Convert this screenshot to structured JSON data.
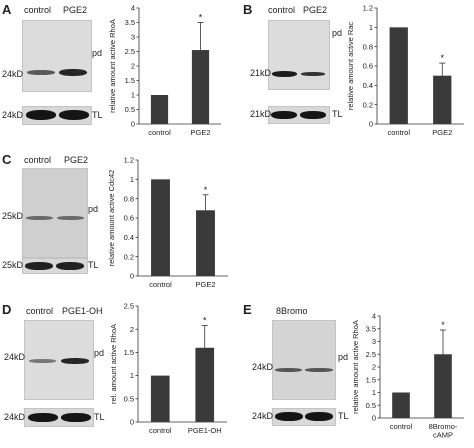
{
  "panels": [
    {
      "letter": "A",
      "lanes": [
        "control",
        "PGE2"
      ],
      "pd_label": "pd",
      "tl_label": "TL",
      "marker_pd": "24kD",
      "marker_tl": "24kD"
    },
    {
      "letter": "B",
      "lanes": [
        "control",
        "PGE2"
      ],
      "pd_label": "pd",
      "tl_label": "TL",
      "marker_pd": "21kD",
      "marker_tl": "21kD"
    },
    {
      "letter": "C",
      "lanes": [
        "control",
        "PGE2"
      ],
      "pd_label": "pd",
      "tl_label": "TL",
      "marker_pd": "25kD",
      "marker_tl": "25kD"
    },
    {
      "letter": "D",
      "lanes": [
        "control",
        "PGE1-OH"
      ],
      "pd_label": "pd",
      "tl_label": "TL",
      "marker_pd": "24kD",
      "marker_tl": "24kD"
    },
    {
      "letter": "E",
      "lanes": [
        "8Bromo"
      ],
      "pd_label": "pd",
      "tl_label": "TL",
      "marker_pd": "24kD",
      "marker_tl": "24kD"
    }
  ],
  "chart_data": [
    {
      "type": "bar",
      "categories": [
        "control",
        "PGE2"
      ],
      "values": [
        1,
        2.55
      ],
      "errors": [
        0,
        0.95
      ],
      "significance": [
        "",
        "*"
      ],
      "ylabel": "relative amount active RhoA",
      "ylim": [
        0,
        4
      ],
      "yticks": [
        "0",
        "0.5",
        "1",
        "1.5",
        "2",
        "2.5",
        "3",
        "3.5",
        "4"
      ],
      "bar_color": "#3a3a3a"
    },
    {
      "type": "bar",
      "categories": [
        "control",
        "PGE2"
      ],
      "values": [
        1,
        0.5
      ],
      "errors": [
        0,
        0.13
      ],
      "significance": [
        "",
        "*"
      ],
      "ylabel": "relative amount active Rac",
      "ylim": [
        0,
        1.2
      ],
      "yticks": [
        "0",
        "0.2",
        "0.4",
        "0.6",
        "0.8",
        "1",
        "1.2"
      ],
      "bar_color": "#3a3a3a"
    },
    {
      "type": "bar",
      "categories": [
        "control",
        "PGE2"
      ],
      "values": [
        1,
        0.68
      ],
      "errors": [
        0,
        0.16
      ],
      "significance": [
        "",
        "*"
      ],
      "ylabel": "relative amount active Cdc42",
      "ylim": [
        0,
        1.2
      ],
      "yticks": [
        "0",
        "0.2",
        "0.4",
        "0.6",
        "0.8",
        "1",
        "1.2"
      ],
      "bar_color": "#3a3a3a"
    },
    {
      "type": "bar",
      "categories": [
        "control",
        "PGE1-OH"
      ],
      "values": [
        1,
        1.6
      ],
      "errors": [
        0,
        0.48
      ],
      "significance": [
        "",
        "*"
      ],
      "ylabel": "rel. amount active RhoA",
      "ylim": [
        0,
        2.5
      ],
      "yticks": [
        "0",
        "0.5",
        "1",
        "1.5",
        "2",
        "2.5"
      ],
      "bar_color": "#3a3a3a"
    },
    {
      "type": "bar",
      "categories": [
        "control",
        "8Bromo-\ncAMP"
      ],
      "values": [
        1,
        2.5
      ],
      "errors": [
        0,
        0.95
      ],
      "significance": [
        "",
        "*"
      ],
      "ylabel": "relative amount active RhoA",
      "ylim": [
        0,
        4
      ],
      "yticks": [
        "0",
        "0.5",
        "1",
        "1.5",
        "2",
        "2.5",
        "3",
        "3.5",
        "4"
      ],
      "bar_color": "#3a3a3a"
    }
  ]
}
